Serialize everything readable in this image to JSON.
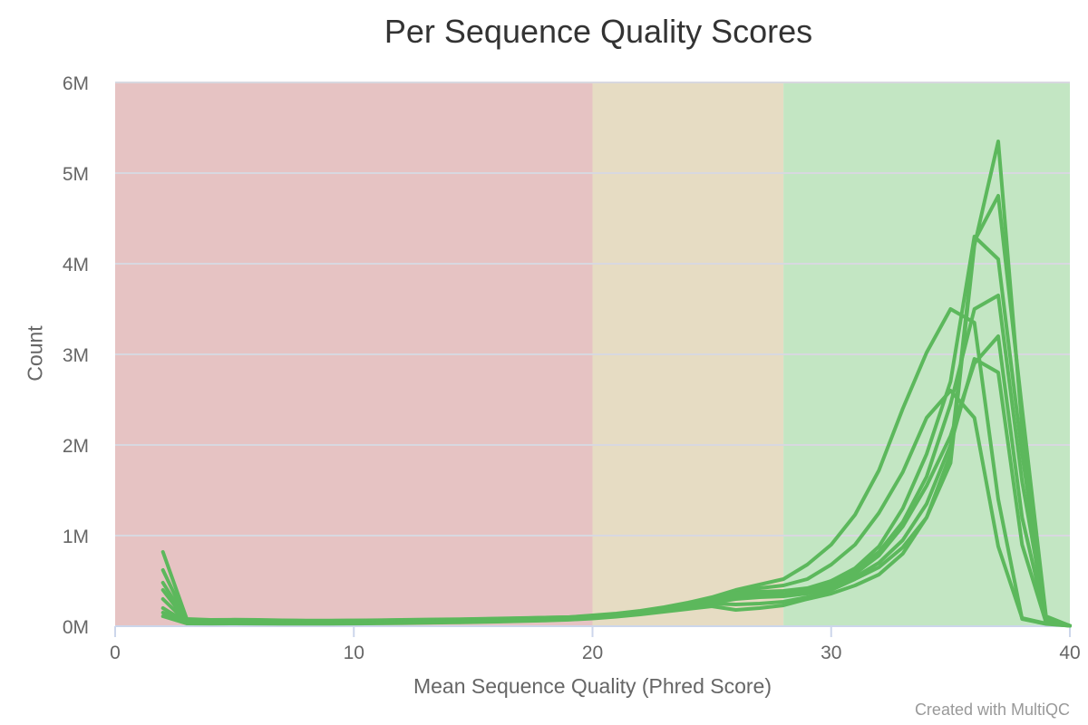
{
  "chart_data": {
    "type": "line",
    "title": "Per Sequence Quality Scores",
    "xlabel": "Mean Sequence Quality (Phred Score)",
    "ylabel": "Count",
    "xlim": [
      0,
      40
    ],
    "ylim": [
      0,
      6000000
    ],
    "x_ticks": [
      {
        "value": 0,
        "label": "0"
      },
      {
        "value": 10,
        "label": "10"
      },
      {
        "value": 20,
        "label": "20"
      },
      {
        "value": 30,
        "label": "30"
      },
      {
        "value": 40,
        "label": "40"
      }
    ],
    "y_ticks": [
      {
        "value": 0,
        "label": "0M"
      },
      {
        "value": 1000000,
        "label": "1M"
      },
      {
        "value": 2000000,
        "label": "2M"
      },
      {
        "value": 3000000,
        "label": "3M"
      },
      {
        "value": 4000000,
        "label": "4M"
      },
      {
        "value": 5000000,
        "label": "5M"
      },
      {
        "value": 6000000,
        "label": "6M"
      }
    ],
    "grid": true,
    "legend": "none",
    "line_color": "#5cb85c",
    "bands": [
      {
        "from": 0,
        "to": 20,
        "color": "#e6c3c3"
      },
      {
        "from": 20,
        "to": 28,
        "color": "#e6dcc3"
      },
      {
        "from": 28,
        "to": 40,
        "color": "#c3e6c3"
      }
    ],
    "x": [
      2,
      3,
      4,
      5,
      6,
      7,
      8,
      9,
      10,
      11,
      12,
      13,
      14,
      15,
      16,
      17,
      18,
      19,
      20,
      21,
      22,
      23,
      24,
      25,
      26,
      27,
      28,
      29,
      30,
      31,
      32,
      33,
      34,
      35,
      36,
      37,
      38,
      39,
      40
    ],
    "series": [
      {
        "values": [
          820000,
          80000,
          70000,
          72000,
          70000,
          65000,
          62000,
          62000,
          64000,
          66000,
          70000,
          74000,
          76000,
          80000,
          85000,
          90000,
          95000,
          100000,
          110000,
          130000,
          160000,
          200000,
          240000,
          300000,
          370000,
          420000,
          450000,
          520000,
          680000,
          900000,
          1250000,
          1700000,
          2300000,
          2600000,
          2300000,
          880000,
          90000,
          30000,
          5000
        ]
      },
      {
        "values": [
          620000,
          70000,
          65000,
          66000,
          64000,
          62000,
          60000,
          60000,
          62000,
          64000,
          68000,
          70000,
          73000,
          77000,
          82000,
          88000,
          95000,
          100000,
          120000,
          140000,
          170000,
          210000,
          260000,
          320000,
          400000,
          460000,
          520000,
          680000,
          900000,
          1230000,
          1720000,
          2400000,
          3020000,
          3500000,
          3350000,
          1400000,
          80000,
          25000,
          5000
        ]
      },
      {
        "values": [
          480000,
          60000,
          55000,
          56000,
          55000,
          53000,
          52000,
          52000,
          54000,
          57000,
          60000,
          63000,
          66000,
          70000,
          75000,
          82000,
          90000,
          98000,
          110000,
          130000,
          160000,
          200000,
          250000,
          300000,
          360000,
          380000,
          390000,
          420000,
          500000,
          640000,
          880000,
          1300000,
          1900000,
          2700000,
          4300000,
          4050000,
          1900000,
          100000,
          5000
        ]
      },
      {
        "values": [
          400000,
          55000,
          50000,
          51000,
          50000,
          49000,
          48000,
          48000,
          50000,
          52000,
          55000,
          58000,
          62000,
          66000,
          72000,
          78000,
          86000,
          95000,
          105000,
          125000,
          150000,
          190000,
          240000,
          290000,
          330000,
          350000,
          350000,
          400000,
          500000,
          620000,
          820000,
          1150000,
          1650000,
          2450000,
          3500000,
          3650000,
          1600000,
          90000,
          5000
        ]
      },
      {
        "values": [
          300000,
          45000,
          42000,
          43000,
          42000,
          41000,
          40000,
          40000,
          42000,
          44000,
          47000,
          50000,
          54000,
          58000,
          63000,
          70000,
          78000,
          86000,
          100000,
          120000,
          145000,
          180000,
          230000,
          280000,
          320000,
          330000,
          340000,
          380000,
          460000,
          580000,
          780000,
          1100000,
          1550000,
          2100000,
          2900000,
          3200000,
          1200000,
          60000,
          5000
        ]
      },
      {
        "values": [
          200000,
          40000,
          38000,
          39000,
          38000,
          37000,
          36000,
          36000,
          38000,
          40000,
          43000,
          46000,
          50000,
          54000,
          59000,
          65000,
          72000,
          80000,
          95000,
          115000,
          140000,
          170000,
          210000,
          260000,
          300000,
          320000,
          330000,
          360000,
          430000,
          540000,
          700000,
          950000,
          1350000,
          2000000,
          2950000,
          2800000,
          900000,
          40000,
          5000
        ]
      },
      {
        "values": [
          150000,
          35000,
          33000,
          34000,
          33000,
          32000,
          31000,
          31000,
          33000,
          35000,
          38000,
          41000,
          45000,
          49000,
          54000,
          60000,
          67000,
          75000,
          90000,
          110000,
          140000,
          175000,
          220000,
          250000,
          240000,
          250000,
          270000,
          320000,
          400000,
          520000,
          650000,
          870000,
          1200000,
          1800000,
          4200000,
          5350000,
          2200000,
          90000,
          5000
        ]
      },
      {
        "values": [
          110000,
          30000,
          29000,
          30000,
          29000,
          28000,
          27000,
          27000,
          29000,
          31000,
          34000,
          37000,
          41000,
          45000,
          50000,
          56000,
          63000,
          71000,
          85000,
          105000,
          130000,
          160000,
          190000,
          220000,
          180000,
          200000,
          230000,
          300000,
          360000,
          450000,
          570000,
          800000,
          1200000,
          1900000,
          4250000,
          4750000,
          2400000,
          110000,
          5000
        ]
      }
    ]
  }
}
